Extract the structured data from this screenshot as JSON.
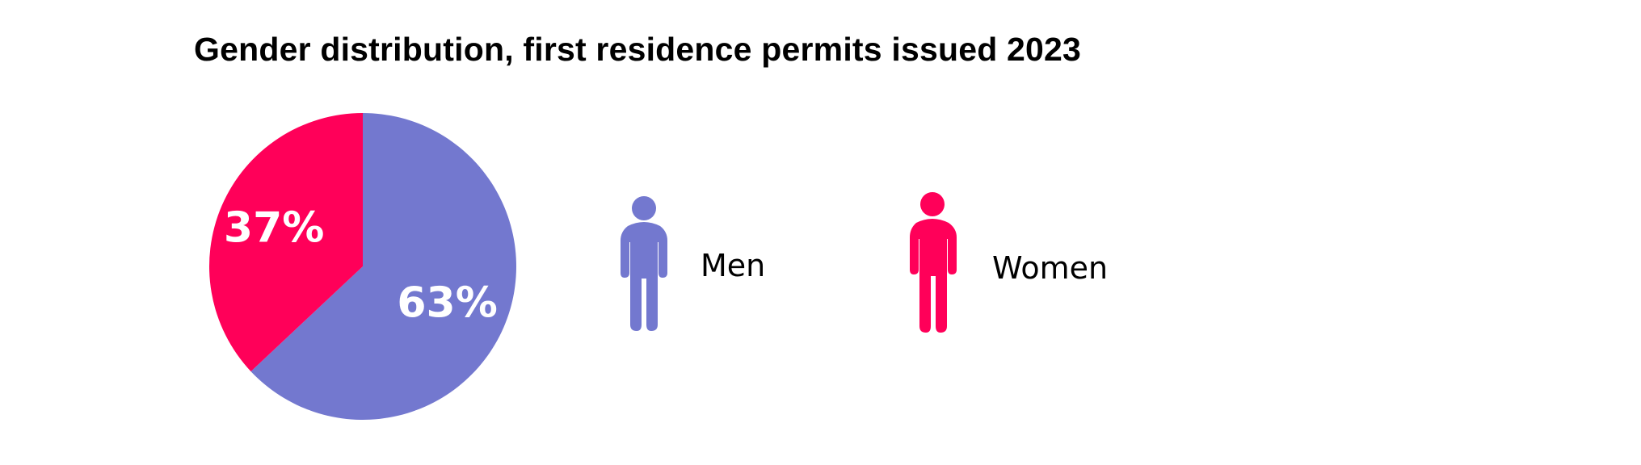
{
  "title": "Gender distribution, first residence permits issued 2023",
  "chart_data": {
    "type": "pie",
    "title": "Gender distribution, first residence permits issued 2023",
    "slices": [
      {
        "label": "Men",
        "value": 63,
        "display": "63%",
        "color": "#7378cf"
      },
      {
        "label": "Women",
        "value": 37,
        "display": "37%",
        "color": "#ff0059"
      }
    ],
    "start_angle_deg": 0,
    "direction": "clockwise"
  },
  "legend": [
    {
      "label": "Men",
      "icon": "man-icon",
      "color": "#7378cf"
    },
    {
      "label": "Women",
      "icon": "woman-icon",
      "color": "#ff0059"
    }
  ]
}
